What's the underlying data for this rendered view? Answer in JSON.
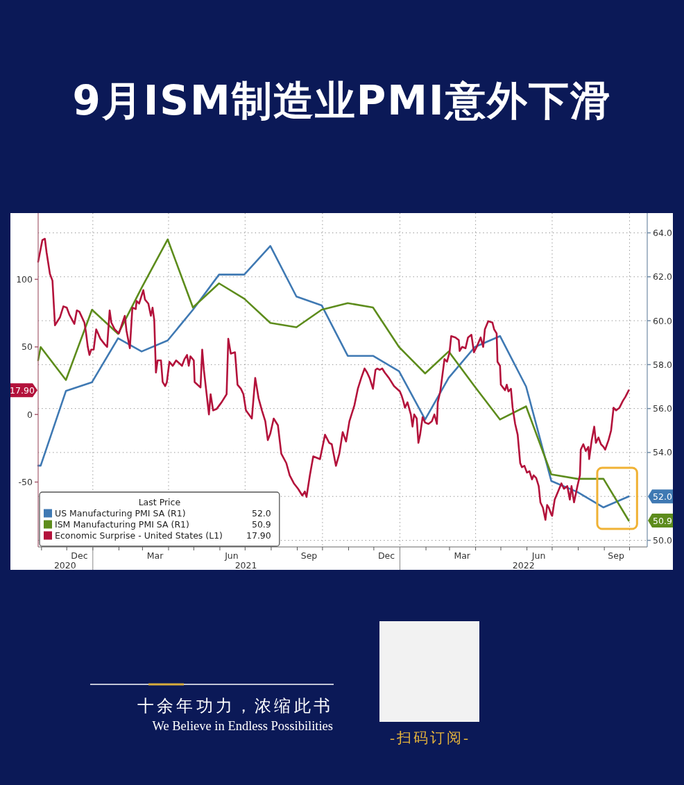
{
  "chart_data": {
    "type": "line",
    "title": "9月ISM制造业PMI意外下滑",
    "legend_title": "Last Price",
    "annotations": [
      "十余年功力，浓缩此书",
      "We Believe in Endless Possibilities",
      "-扫码订阅-",
      "52.0",
      "50.9",
      "17.90"
    ],
    "xlim": [
      "2020-10-28",
      "2022-10-22"
    ],
    "xticks": [
      {
        "value": "2020-12-16",
        "label": "Dec"
      },
      {
        "value": "2021-03-16",
        "label": "Mar"
      },
      {
        "value": "2021-06-15",
        "label": "Jun"
      },
      {
        "value": "2021-09-15",
        "label": "Sep"
      },
      {
        "value": "2021-12-16",
        "label": "Dec"
      },
      {
        "value": "2022-03-16",
        "label": "Mar"
      },
      {
        "value": "2022-06-15",
        "label": "Jun"
      },
      {
        "value": "2022-09-15",
        "label": "Sep"
      },
      {
        "value": "2020-11-01",
        "label": null
      },
      {
        "value": "2020-12-01",
        "label": null
      },
      {
        "value": "2021-01-01",
        "label": null
      },
      {
        "value": "2021-02-01",
        "label": null
      },
      {
        "value": "2021-03-01",
        "label": null
      },
      {
        "value": "2021-04-01",
        "label": null
      },
      {
        "value": "2021-05-01",
        "label": null
      },
      {
        "value": "2021-06-01",
        "label": null
      },
      {
        "value": "2021-07-01",
        "label": null
      },
      {
        "value": "2021-08-01",
        "label": null
      },
      {
        "value": "2021-09-01",
        "label": null
      },
      {
        "value": "2021-10-01",
        "label": null
      },
      {
        "value": "2021-11-01",
        "label": null
      },
      {
        "value": "2021-12-01",
        "label": null
      },
      {
        "value": "2022-01-01",
        "label": null
      },
      {
        "value": "2022-02-01",
        "label": null
      },
      {
        "value": "2022-03-01",
        "label": null
      },
      {
        "value": "2022-04-01",
        "label": null
      },
      {
        "value": "2022-05-01",
        "label": null
      },
      {
        "value": "2022-06-01",
        "label": null
      },
      {
        "value": "2022-07-01",
        "label": null
      },
      {
        "value": "2022-08-01",
        "label": null
      },
      {
        "value": "2022-09-01",
        "label": null
      },
      {
        "value": "2022-10-01",
        "label": null
      }
    ],
    "x2lim": [
      "2020-10-28",
      "2022-10-22"
    ],
    "x2ticks": [
      {
        "value": "2020-11-29",
        "label": "2020"
      },
      {
        "value": "2021-07-02",
        "label": "2021"
      },
      {
        "value": "2022-05-28",
        "label": "2022"
      }
    ],
    "ylim": [
      -98,
      149
    ],
    "yticks": [
      100,
      50,
      {
        "value": 17.9,
        "label": "17.90"
      },
      0,
      -50
    ],
    "y2lim": [
      49.7,
      64.9
    ],
    "y2ticks": [
      {
        "value": 64,
        "label": "64.0"
      },
      {
        "value": 62,
        "label": "62.0"
      },
      {
        "value": 60,
        "label": "60.0"
      },
      {
        "value": 58,
        "label": "58.0"
      },
      {
        "value": 56,
        "label": "56.0"
      },
      {
        "value": 54,
        "label": "54.0"
      },
      {
        "value": 52,
        "label": "52.0"
      },
      {
        "value": 50.9,
        "label": "50.9"
      },
      {
        "value": 50,
        "label": "50.0"
      }
    ],
    "grid": true,
    "legend": "bottom left",
    "series": [
      {
        "name": "US Manufacturing PMI SA (R1)",
        "color": "#3f79b3",
        "axis": "y2",
        "x": [
          "2020-10-28",
          "2020-10-31",
          "2020-11-30",
          "2020-12-31",
          "2021-01-31",
          "2021-02-28",
          "2021-03-31",
          "2021-04-30",
          "2021-05-31",
          "2021-06-30",
          "2021-07-31",
          "2021-08-31",
          "2021-09-30",
          "2021-10-31",
          "2021-11-30",
          "2021-12-31",
          "2022-01-31",
          "2022-02-28",
          "2022-03-31",
          "2022-04-30",
          "2022-05-31",
          "2022-06-30",
          "2022-07-31",
          "2022-08-31",
          "2022-09-30"
        ],
        "values": [
          53.4,
          53.4,
          56.8,
          57.2,
          59.2,
          58.6,
          59.1,
          60.5,
          62.1,
          62.1,
          63.4,
          61.1,
          60.7,
          58.4,
          58.4,
          57.7,
          55.5,
          57.4,
          58.8,
          59.3,
          57.0,
          52.7,
          52.2,
          51.5,
          52.0
        ]
      },
      {
        "name": "ISM Manufacturing PMI SA (R1)",
        "color": "#5d8c1c",
        "axis": "y2",
        "x": [
          "2020-10-28",
          "2020-10-31",
          "2020-11-30",
          "2020-12-31",
          "2021-01-31",
          "2021-02-28",
          "2021-03-31",
          "2021-04-30",
          "2021-05-31",
          "2021-06-30",
          "2021-07-31",
          "2021-08-31",
          "2021-09-30",
          "2021-10-31",
          "2021-11-30",
          "2021-12-31",
          "2022-01-31",
          "2022-02-28",
          "2022-03-31",
          "2022-04-30",
          "2022-05-31",
          "2022-06-30",
          "2022-07-31",
          "2022-08-31",
          "2022-09-30"
        ],
        "values": [
          58.2,
          58.8,
          57.3,
          60.5,
          59.4,
          61.5,
          63.7,
          60.6,
          61.7,
          61.0,
          59.9,
          59.7,
          60.5,
          60.8,
          60.6,
          58.8,
          57.6,
          58.6,
          57.0,
          55.5,
          56.1,
          53.0,
          52.8,
          52.8,
          50.9
        ]
      },
      {
        "name": "Economic Surprise - United States (L1)",
        "color": "#b3123b",
        "x": [
          "2020-10-28",
          "2020-11-02",
          "2020-11-05",
          "2020-11-07",
          "2020-11-11",
          "2020-11-14",
          "2020-11-17",
          "2020-11-23",
          "2020-11-27",
          "2020-12-01",
          "2020-12-04",
          "2020-12-10",
          "2020-12-13",
          "2020-12-16",
          "2020-12-22",
          "2020-12-24",
          "2020-12-26",
          "2020-12-28",
          "2020-12-30",
          "2021-01-02",
          "2021-01-05",
          "2021-01-10",
          "2021-01-15",
          "2021-01-18",
          "2021-01-21",
          "2021-01-23",
          "2021-01-27",
          "2021-02-01",
          "2021-02-08",
          "2021-02-10",
          "2021-02-14",
          "2021-02-17",
          "2021-02-21",
          "2021-02-22",
          "2021-02-25",
          "2021-03-02",
          "2021-03-04",
          "2021-03-08",
          "2021-03-11",
          "2021-03-13",
          "2021-03-15",
          "2021-03-17",
          "2021-03-19",
          "2021-03-23",
          "2021-03-25",
          "2021-03-28",
          "2021-03-30",
          "2021-04-02",
          "2021-04-06",
          "2021-04-10",
          "2021-04-17",
          "2021-04-20",
          "2021-04-23",
          "2021-04-25",
          "2021-04-27",
          "2021-05-01",
          "2021-05-02",
          "2021-05-09",
          "2021-05-11",
          "2021-05-13",
          "2021-05-19",
          "2021-05-21",
          "2021-05-24",
          "2021-05-28",
          "2021-06-03",
          "2021-06-09",
          "2021-06-11",
          "2021-06-14",
          "2021-06-19",
          "2021-06-22",
          "2021-06-26",
          "2021-06-29",
          "2021-07-02",
          "2021-07-09",
          "2021-07-13",
          "2021-07-17",
          "2021-07-21",
          "2021-07-25",
          "2021-07-28",
          "2021-07-31",
          "2021-08-04",
          "2021-08-09",
          "2021-08-13",
          "2021-08-19",
          "2021-08-23",
          "2021-08-28",
          "2021-09-02",
          "2021-09-07",
          "2021-09-10",
          "2021-09-12",
          "2021-09-16",
          "2021-09-20",
          "2021-09-28",
          "2021-10-04",
          "2021-10-09",
          "2021-10-12",
          "2021-10-17",
          "2021-10-21",
          "2021-10-25",
          "2021-10-29",
          "2021-11-02",
          "2021-11-08",
          "2021-11-12",
          "2021-11-16",
          "2021-11-20",
          "2021-11-23",
          "2021-11-26",
          "2021-11-30",
          "2021-12-03",
          "2021-12-05",
          "2021-12-08",
          "2021-12-11",
          "2021-12-14",
          "2021-12-19",
          "2021-12-25",
          "2022-01-01",
          "2022-01-03",
          "2022-01-05",
          "2022-01-07",
          "2022-01-10",
          "2022-01-14",
          "2022-01-16",
          "2022-01-18",
          "2022-01-21",
          "2022-01-23",
          "2022-01-25",
          "2022-01-28",
          "2022-01-31",
          "2022-02-04",
          "2022-02-08",
          "2022-02-11",
          "2022-02-14",
          "2022-02-15",
          "2022-02-18",
          "2022-02-23",
          "2022-02-26",
          "2022-03-01",
          "2022-03-03",
          "2022-03-08",
          "2022-03-12",
          "2022-03-13",
          "2022-03-16",
          "2022-03-20",
          "2022-03-23",
          "2022-03-27",
          "2022-03-30",
          "2022-04-03",
          "2022-04-07",
          "2022-04-10",
          "2022-04-12",
          "2022-04-16",
          "2022-04-21",
          "2022-04-23",
          "2022-04-26",
          "2022-04-27",
          "2022-04-30",
          "2022-05-01",
          "2022-05-06",
          "2022-05-08",
          "2022-05-10",
          "2022-05-13",
          "2022-05-15",
          "2022-05-18",
          "2022-05-21",
          "2022-05-24",
          "2022-05-26",
          "2022-05-29",
          "2022-06-01",
          "2022-06-04",
          "2022-06-07",
          "2022-06-09",
          "2022-06-12",
          "2022-06-15",
          "2022-06-17",
          "2022-06-20",
          "2022-06-23",
          "2022-06-25",
          "2022-06-27",
          "2022-06-30",
          "2022-07-01",
          "2022-07-04",
          "2022-07-08",
          "2022-07-12",
          "2022-07-15",
          "2022-07-19",
          "2022-07-22",
          "2022-07-24",
          "2022-07-27",
          "2022-07-31",
          "2022-08-03",
          "2022-08-04",
          "2022-08-07",
          "2022-08-10",
          "2022-08-13",
          "2022-08-14",
          "2022-08-17",
          "2022-08-20",
          "2022-08-22",
          "2022-08-25",
          "2022-08-28",
          "2022-08-31",
          "2022-09-02",
          "2022-09-06",
          "2022-09-09",
          "2022-09-12",
          "2022-09-15",
          "2022-09-19",
          "2022-09-23",
          "2022-09-26",
          "2022-09-30"
        ],
        "values": [
          113,
          129,
          130,
          120,
          104,
          99,
          66,
          72,
          80,
          79,
          74,
          67,
          77,
          76,
          68,
          60,
          50,
          44,
          48,
          48,
          63,
          56,
          52,
          50,
          77,
          68,
          63,
          60,
          73,
          62,
          49,
          79,
          78,
          84,
          82,
          92,
          85,
          82,
          73,
          79,
          70,
          31,
          40,
          40,
          24,
          21,
          24,
          39,
          36,
          40,
          36,
          41,
          44,
          36,
          43,
          40,
          24,
          20,
          48,
          33,
          0,
          15,
          3,
          4,
          9,
          15,
          56,
          45,
          46,
          22,
          19,
          15,
          3,
          -3,
          27,
          12,
          3,
          -5,
          -19,
          -14,
          -3,
          -8,
          -29,
          -36,
          -45,
          -51,
          -55,
          -60,
          -57,
          -61,
          -45,
          -31,
          -33,
          -15,
          -21,
          -22,
          -38,
          -29,
          -13,
          -20,
          -5,
          7,
          19,
          27,
          34,
          31,
          27,
          19,
          33,
          34,
          33,
          34,
          31,
          27,
          21,
          17,
          14,
          10,
          5,
          9,
          0,
          -9,
          0,
          -3,
          -21,
          -15,
          -2,
          -6,
          -7,
          -5,
          0,
          -7,
          9,
          17,
          41,
          39,
          46,
          58,
          57,
          55,
          47,
          50,
          49,
          57,
          59,
          46,
          51,
          57,
          50,
          63,
          69,
          68,
          63,
          60,
          39,
          36,
          22,
          18,
          22,
          17,
          19,
          5,
          -7,
          -15,
          -36,
          -39,
          -38,
          -43,
          -42,
          -48,
          -45,
          -47,
          -53,
          -65,
          -69,
          -78,
          -67,
          -69,
          -74,
          -75,
          -63,
          -57,
          -51,
          -55,
          -53,
          -63,
          -53,
          -65,
          -53,
          -45,
          -26,
          -22,
          -27,
          -24,
          -33,
          -19,
          -9,
          -21,
          -17,
          -22,
          -24,
          -26,
          -19,
          -12,
          5,
          3,
          5,
          10,
          13,
          17.9
        ]
      }
    ]
  }
}
